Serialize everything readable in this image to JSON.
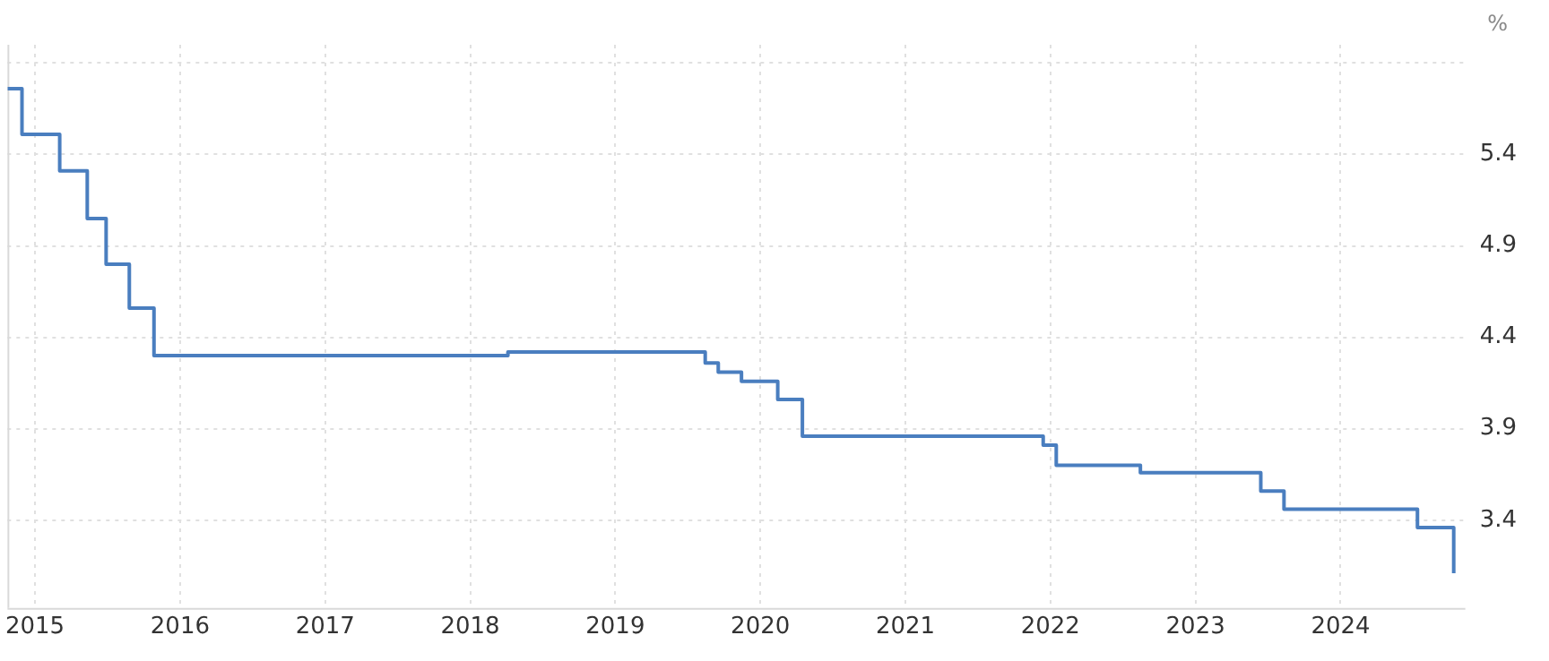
{
  "chart_data": {
    "type": "step",
    "ylabel": "%",
    "x": [
      2014.81,
      2014.91,
      2015.17,
      2015.36,
      2015.49,
      2015.65,
      2015.82,
      2018.26,
      2019.62,
      2019.71,
      2019.87,
      2020.12,
      2020.29,
      2021.95,
      2022.04,
      2022.62,
      2023.45,
      2023.61,
      2024.53,
      2024.78
    ],
    "series": [
      {
        "color": "#4a7ebf",
        "values": [
          5.76,
          5.51,
          5.31,
          5.05,
          4.8,
          4.56,
          4.3,
          4.32,
          4.26,
          4.21,
          4.16,
          4.06,
          3.86,
          3.81,
          3.7,
          3.66,
          3.56,
          3.46,
          3.36,
          3.11
        ]
      }
    ],
    "xlim": [
      2014.81,
      2024.86
    ],
    "xticks": [
      2015,
      2016,
      2017,
      2018,
      2019,
      2020,
      2021,
      2022,
      2023,
      2024
    ],
    "ylim": [
      2.92,
      6.0
    ],
    "yticks": [
      3.4,
      3.9,
      4.4,
      4.9,
      5.4,
      {
        "value": 5.9,
        "label": null
      }
    ],
    "grid": true,
    "legend": false,
    "marker": "none",
    "line_style": "solid"
  }
}
